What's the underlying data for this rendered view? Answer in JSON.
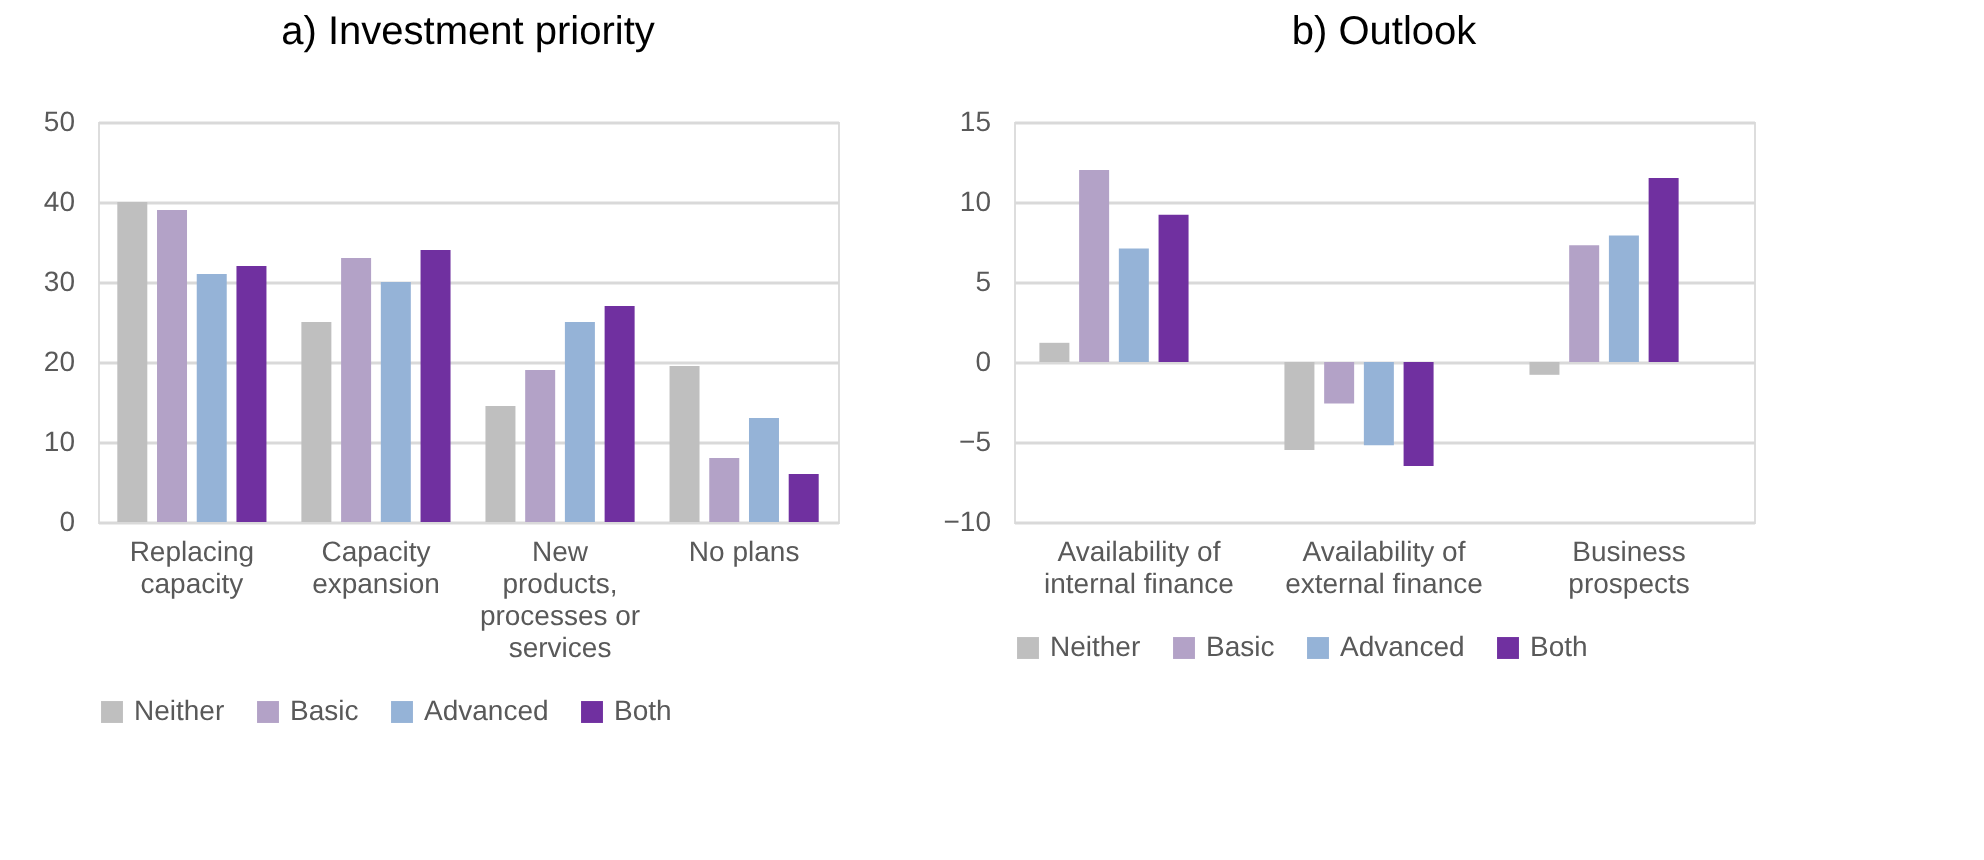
{
  "chart_data": [
    {
      "type": "bar",
      "title": "a)  Investment priority",
      "categories": [
        "Replacing\ncapacity",
        "Capacity\nexpansion",
        "New\nproducts,\nprocesses or\nservices",
        "No plans"
      ],
      "series": [
        {
          "name": "Neither",
          "color": "#bfbfbf",
          "values": [
            40,
            25,
            14.5,
            19.5
          ]
        },
        {
          "name": "Basic",
          "color": "#b3a2c7",
          "values": [
            39,
            33,
            19,
            8
          ]
        },
        {
          "name": "Advanced",
          "color": "#95b3d7",
          "values": [
            31,
            30,
            25,
            13
          ]
        },
        {
          "name": "Both",
          "color": "#7030a0",
          "values": [
            32,
            34,
            27,
            6
          ]
        }
      ],
      "ylim": [
        0,
        50
      ],
      "yticks": [
        0,
        10,
        20,
        30,
        40,
        50
      ],
      "grid": "y",
      "legend": "bottom"
    },
    {
      "type": "bar",
      "title": "b)  Outlook",
      "categories": [
        "Availability of\ninternal finance",
        "Availability of\nexternal finance",
        "Business\nprospects"
      ],
      "series": [
        {
          "name": "Neither",
          "color": "#bfbfbf",
          "values": [
            1.2,
            -5.5,
            -0.8
          ]
        },
        {
          "name": "Basic",
          "color": "#b3a2c7",
          "values": [
            12,
            -2.6,
            7.3
          ]
        },
        {
          "name": "Advanced",
          "color": "#95b3d7",
          "values": [
            7.1,
            -5.2,
            7.9
          ]
        },
        {
          "name": "Both",
          "color": "#7030a0",
          "values": [
            9.2,
            -6.5,
            11.5
          ]
        }
      ],
      "ylim": [
        -10,
        15
      ],
      "yticks": [
        -10,
        -5,
        0,
        5,
        10,
        15
      ],
      "grid": "y",
      "legend": "bottom"
    }
  ]
}
